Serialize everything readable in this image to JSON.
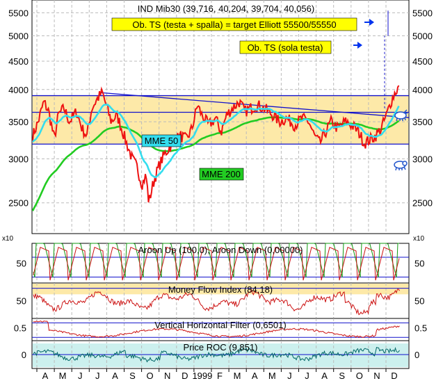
{
  "chart_data": [
    {
      "type": "line",
      "title": "IND Mib30 (39,716, 40,204, 39,704, 40,056)",
      "multiplier_label": "x10",
      "yticks": [
        2500,
        3000,
        3500,
        4000,
        4500,
        5000,
        5500
      ],
      "ylim": [
        2200,
        5800
      ],
      "log_scale": true,
      "months": [
        "A",
        "M",
        "J",
        "J",
        "A",
        "S",
        "O",
        "N",
        "D",
        "1999",
        "F",
        "M",
        "A",
        "M",
        "J",
        "J",
        "A",
        "S",
        "O",
        "N",
        "D"
      ],
      "series": [
        {
          "name": "MME 50",
          "color": "#33ddee"
        },
        {
          "name": "MME 200",
          "color": "#22cc22"
        }
      ],
      "price_color": "#ee1111",
      "annotations": [
        {
          "text": "Ob. TS (testa + spalla) = target Elliott 55500/55550",
          "background": "#ffff00"
        },
        {
          "text": "Ob. TS (sola  testa)",
          "background": "#ffff00"
        },
        {
          "text": "MME 50",
          "background": "#33ddee"
        },
        {
          "text": "MME 200",
          "background": "#22cc22"
        }
      ],
      "horizontal_levels": [
        3900,
        3640,
        3190
      ],
      "shaded_band": [
        3190,
        3900
      ],
      "band_color": "#fde9a8",
      "trendline": {
        "from": 3950,
        "to": 3560
      },
      "icons": [
        "bull-icon",
        "bear-icon",
        "arrow-right-icon"
      ]
    },
    {
      "type": "line",
      "title": "Aroon Up (100,0), Aroon Down (0,00000)",
      "yticks": [
        50
      ],
      "ylim": [
        0,
        100
      ],
      "series": [
        {
          "name": "Aroon Up",
          "color": "#119911"
        },
        {
          "name": "Aroon Down",
          "color": "#cc1111"
        }
      ]
    },
    {
      "type": "line",
      "title": "Money Flow Index (84,18)",
      "yticks": [
        50
      ],
      "ylim": [
        0,
        100
      ],
      "series": [
        {
          "name": "Money Flow Index",
          "color": "#cc1111"
        }
      ]
    },
    {
      "type": "line",
      "title": "Vertical Horizontal Filter (0,6501)",
      "yticks": [
        0.5
      ],
      "ylim": [
        0.1,
        0.8
      ],
      "series": [
        {
          "name": "Vertical Horizontal Filter",
          "color": "#cc1111"
        }
      ]
    },
    {
      "type": "area",
      "title": "Price ROC (9,851)",
      "yticks": [
        0
      ],
      "ylim": [
        -15,
        15
      ],
      "series": [
        {
          "name": "Price ROC",
          "color": "#006666"
        }
      ]
    }
  ]
}
